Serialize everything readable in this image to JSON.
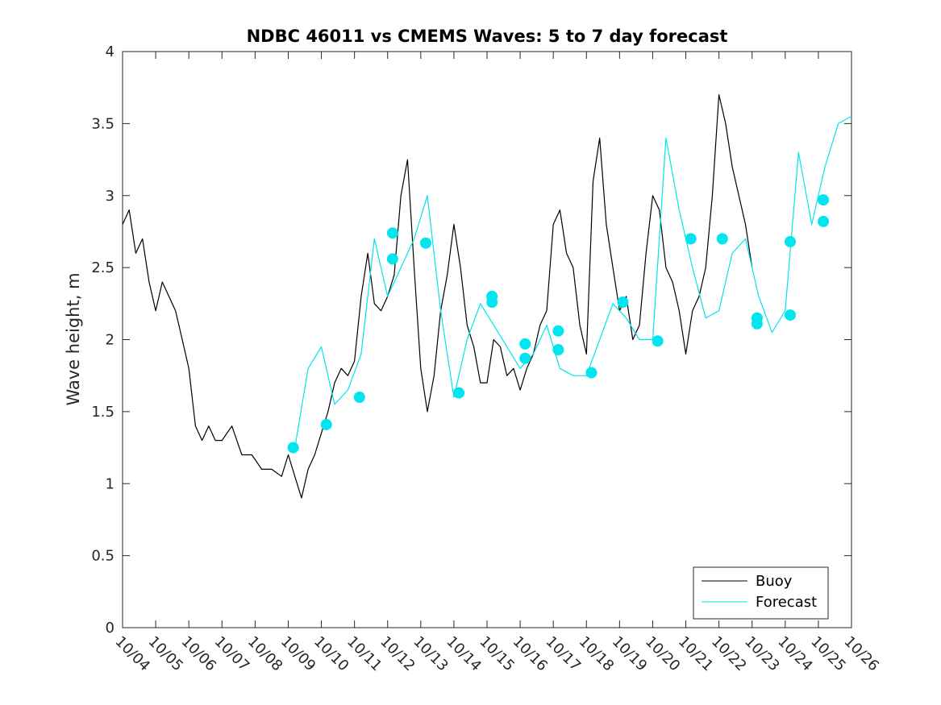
{
  "chart_data": {
    "type": "line",
    "title": "NDBC 46011 vs CMEMS Waves: 5 to 7 day forecast",
    "xlabel": "",
    "ylabel": "Wave height, m",
    "xlim": [
      0,
      22
    ],
    "ylim": [
      0,
      4
    ],
    "grid": false,
    "legend_position": "bottom-right",
    "x_tick_labels": [
      "10/04",
      "10/05",
      "10/06",
      "10/07",
      "10/08",
      "10/09",
      "10/10",
      "10/11",
      "10/12",
      "10/13",
      "10/14",
      "10/15",
      "10/16",
      "10/17",
      "10/18",
      "10/19",
      "10/20",
      "10/21",
      "10/22",
      "10/23",
      "10/24",
      "10/25",
      "10/26"
    ],
    "y_ticks": [
      0,
      0.5,
      1,
      1.5,
      2,
      2.5,
      3,
      3.5,
      4
    ],
    "y_tick_labels": [
      "0",
      "0.5",
      "1",
      "1.5",
      "2",
      "2.5",
      "3",
      "3.5",
      "4"
    ],
    "colors": {
      "buoy": "#000000",
      "forecast": "#00e5ee",
      "axis": "#262626"
    },
    "series": [
      {
        "name": "Buoy",
        "color": "#000000",
        "x": [
          0,
          0.2,
          0.4,
          0.6,
          0.8,
          1.0,
          1.2,
          1.4,
          1.6,
          1.8,
          2.0,
          2.2,
          2.4,
          2.6,
          2.8,
          3.0,
          3.3,
          3.6,
          3.9,
          4.2,
          4.5,
          4.8,
          5.0,
          5.2,
          5.4,
          5.6,
          5.8,
          6.0,
          6.2,
          6.4,
          6.6,
          6.8,
          7.0,
          7.2,
          7.4,
          7.6,
          7.8,
          8.0,
          8.2,
          8.4,
          8.6,
          8.8,
          9.0,
          9.2,
          9.4,
          9.6,
          9.8,
          10.0,
          10.2,
          10.4,
          10.6,
          10.8,
          11.0,
          11.2,
          11.4,
          11.6,
          11.8,
          12.0,
          12.2,
          12.4,
          12.6,
          12.8,
          13.0,
          13.2,
          13.4,
          13.6,
          13.8,
          14.0,
          14.2,
          14.4,
          14.6,
          14.8,
          15.0,
          15.2,
          15.4,
          15.6,
          15.8,
          16.0,
          16.2,
          16.4,
          16.6,
          16.8,
          17.0,
          17.2,
          17.4,
          17.6,
          17.8,
          18.0,
          18.2,
          18.4,
          18.6,
          18.8,
          19.0,
          19.2,
          19.4,
          19.6,
          19.8,
          20.0,
          20.2,
          20.4,
          20.6,
          20.8,
          21.0,
          21.2,
          21.4,
          21.6,
          21.8,
          22.0
        ],
        "values": [
          2.8,
          2.9,
          2.6,
          2.7,
          2.4,
          2.2,
          2.4,
          2.3,
          2.2,
          2.0,
          1.8,
          1.4,
          1.3,
          1.4,
          1.3,
          1.3,
          1.4,
          1.2,
          1.2,
          1.1,
          1.1,
          1.05,
          1.2,
          1.05,
          0.9,
          1.1,
          1.2,
          1.35,
          1.5,
          1.7,
          1.8,
          1.75,
          1.85,
          2.3,
          2.6,
          2.25,
          2.2,
          2.3,
          2.45,
          3.0,
          3.25,
          2.5,
          1.8,
          1.5,
          1.75,
          2.2,
          2.45,
          2.8,
          2.5,
          2.1,
          1.95,
          1.7,
          1.7,
          2.0,
          1.95,
          1.75,
          1.8,
          1.65,
          1.8,
          1.9,
          2.1,
          2.2,
          2.8,
          2.9,
          2.6,
          2.5,
          2.1,
          1.9,
          3.1,
          3.4,
          2.8,
          2.5,
          2.2,
          2.3,
          2.0,
          2.1,
          2.6,
          3.0,
          2.9,
          2.5,
          2.4,
          2.2,
          1.9,
          2.2,
          2.3,
          2.5,
          3.0,
          3.7,
          3.5,
          3.2,
          3.0,
          2.8,
          2.5,
          null,
          null,
          null,
          null,
          null,
          null,
          null,
          null,
          null,
          null,
          null,
          null,
          null,
          null,
          null
        ]
      },
      {
        "name": "Forecast",
        "color": "#00e5ee",
        "x": [
          5.2,
          5.6,
          6.0,
          6.4,
          6.8,
          7.2,
          7.6,
          8.0,
          8.4,
          8.8,
          9.2,
          9.6,
          10.0,
          10.4,
          10.8,
          11.2,
          11.6,
          12.0,
          12.4,
          12.8,
          13.2,
          13.6,
          14.0,
          14.4,
          14.8,
          15.2,
          15.6,
          16.0,
          16.4,
          16.8,
          17.2,
          17.6,
          18.0,
          18.4,
          18.8,
          19.2,
          19.6,
          20.0,
          20.4,
          20.8,
          21.2,
          21.6,
          22.0
        ],
        "values": [
          1.25,
          1.8,
          1.95,
          1.55,
          1.65,
          1.9,
          2.7,
          2.3,
          2.5,
          2.7,
          3.0,
          2.2,
          1.6,
          2.0,
          2.25,
          2.1,
          1.95,
          1.8,
          1.9,
          2.1,
          1.8,
          1.75,
          1.75,
          2.0,
          2.25,
          2.15,
          2.0,
          2.0,
          3.4,
          2.9,
          2.5,
          2.15,
          2.2,
          2.6,
          2.7,
          2.3,
          2.05,
          2.2,
          3.3,
          2.8,
          3.2,
          3.5,
          3.55
        ]
      }
    ],
    "forecast_markers": {
      "x": [
        5.15,
        6.15,
        7.15,
        8.15,
        8.15,
        9.15,
        10.15,
        11.15,
        11.15,
        12.15,
        12.15,
        13.15,
        13.15,
        14.15,
        15.1,
        16.15,
        17.15,
        18.1,
        19.15,
        19.15,
        20.15,
        20.15,
        21.15,
        21.15
      ],
      "y": [
        1.25,
        1.41,
        1.6,
        2.74,
        2.56,
        2.67,
        1.63,
        2.3,
        2.26,
        1.97,
        1.87,
        2.06,
        1.93,
        1.77,
        2.26,
        1.99,
        2.7,
        2.7,
        2.11,
        2.15,
        2.68,
        2.17,
        2.97,
        2.82
      ]
    },
    "legend": [
      "Buoy",
      "Forecast"
    ]
  }
}
